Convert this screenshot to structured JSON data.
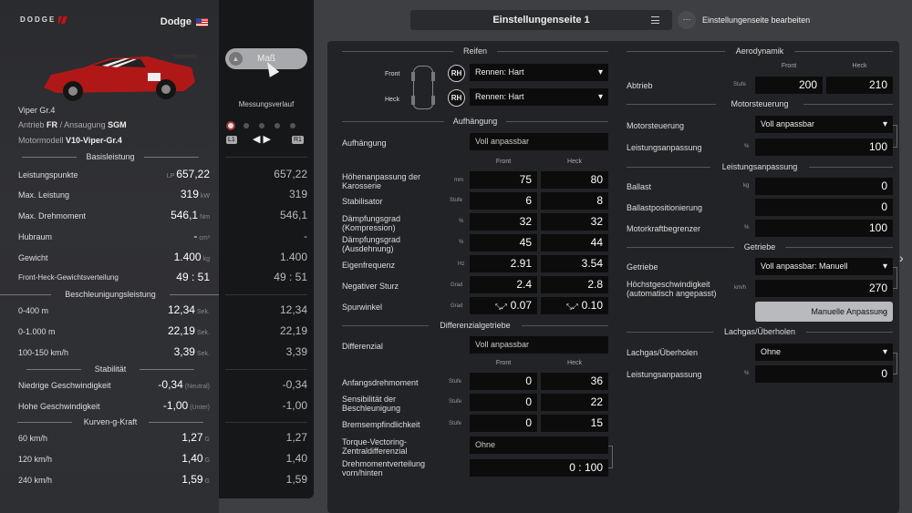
{
  "car_panel": {
    "brand": "DODGE",
    "manufacturer": "Dodge",
    "model": "Viper Gr.4",
    "drive_label": "Antrieb",
    "drive": "FR",
    "separator": "/",
    "intake_label": "Ansaugung",
    "intake": "SGM",
    "engine_label": "Motormodell",
    "engine": "V10-Viper-Gr.4",
    "sections": {
      "base": "Basisleistung",
      "accel": "Beschleunigungsleistung",
      "stability": "Stabilität",
      "gforce": "Kurven-g-Kraft"
    },
    "stats": [
      {
        "label": "Leistungspunkte",
        "prefix": "LP",
        "value": "657,22",
        "unit": "",
        "measured": "657,22"
      },
      {
        "label": "Max. Leistung",
        "prefix": "",
        "value": "319",
        "unit": "kW",
        "measured": "319"
      },
      {
        "label": "Max. Drehmoment",
        "prefix": "",
        "value": "546,1",
        "unit": "Nm",
        "measured": "546,1"
      },
      {
        "label": "Hubraum",
        "prefix": "",
        "value": "-",
        "unit": "cm³",
        "measured": "-"
      },
      {
        "label": "Gewicht",
        "prefix": "",
        "value": "1.400",
        "unit": "kg",
        "measured": "1.400"
      },
      {
        "label": "Front-Heck-Gewichtsverteilung",
        "prefix": "",
        "value": "49 : 51",
        "unit": "",
        "measured": "49 : 51"
      },
      {
        "label": "0-400 m",
        "prefix": "",
        "value": "12,34",
        "unit": "Sek.",
        "measured": "12,34"
      },
      {
        "label": "0-1.000 m",
        "prefix": "",
        "value": "22,19",
        "unit": "Sek.",
        "measured": "22,19"
      },
      {
        "label": "100-150 km/h",
        "prefix": "",
        "value": "3,39",
        "unit": "Sek.",
        "measured": "3,39"
      },
      {
        "label": "Niedrige Geschwindigkeit",
        "prefix": "",
        "value": "-0,34",
        "unit": "(Neutral)",
        "measured": "-0,34"
      },
      {
        "label": "Hohe Geschwindigkeit",
        "prefix": "",
        "value": "-1,00",
        "unit": "(Unter)",
        "measured": "-1,00"
      },
      {
        "label": "60 km/h",
        "prefix": "",
        "value": "1,27",
        "unit": "G",
        "measured": "1,27"
      },
      {
        "label": "120 km/h",
        "prefix": "",
        "value": "1,40",
        "unit": "G",
        "measured": "1,40"
      },
      {
        "label": "240 km/h",
        "prefix": "",
        "value": "1,59",
        "unit": "G",
        "measured": "1,59"
      }
    ]
  },
  "measure": {
    "button": "Maß",
    "history_label": "Messungsverlauf",
    "l1": "L1",
    "r1": "R1"
  },
  "header": {
    "page_title": "Einstellungenseite 1",
    "edit_label": "Einstellungenseite bearbeiten"
  },
  "settings": {
    "tyres": {
      "title": "Reifen",
      "front_label": "Front",
      "rear_label": "Heck",
      "badge": "RH",
      "front_value": "Rennen: Hart",
      "rear_value": "Rennen: Hart"
    },
    "suspension": {
      "title": "Aufhängung",
      "type_label": "Aufhängung",
      "type_value": "Voll anpassbar",
      "col_front": "Front",
      "col_rear": "Heck",
      "rows": [
        {
          "label": "Höhenanpassung der Karosserie",
          "unit": "mm",
          "front": "75",
          "rear": "80"
        },
        {
          "label": "Stabilisator",
          "unit": "Stufe",
          "front": "6",
          "rear": "8"
        },
        {
          "label": "Dämpfungsgrad (Kompression)",
          "unit": "%",
          "front": "32",
          "rear": "32"
        },
        {
          "label": "Dämpfungsgrad (Ausdehnung)",
          "unit": "%",
          "front": "45",
          "rear": "44"
        },
        {
          "label": "Eigenfrequenz",
          "unit": "Hz",
          "front": "2.91",
          "rear": "3.54"
        },
        {
          "label": "Negativer Sturz",
          "unit": "Grad",
          "front": "2.4",
          "rear": "2.8"
        },
        {
          "label": "Spurwinkel",
          "unit": "Grad",
          "front": "0.07",
          "rear": "0.10"
        }
      ]
    },
    "differential": {
      "title": "Differenzialgetriebe",
      "type_label": "Differenzial",
      "type_value": "Voll anpassbar",
      "col_front": "Front",
      "col_rear": "Heck",
      "rows": [
        {
          "label": "Anfangsdrehmoment",
          "unit": "Stufe",
          "front": "0",
          "rear": "36"
        },
        {
          "label": "Sensibilität der Beschleunigung",
          "unit": "Stufe",
          "front": "0",
          "rear": "22"
        },
        {
          "label": "Bremsempfindlichkeit",
          "unit": "Stufe",
          "front": "0",
          "rear": "15"
        }
      ],
      "center_label": "Torque-Vectoring-Zentraldifferenzial",
      "center_value": "Ohne",
      "split_label": "Drehmomentverteilung vorn/hinten",
      "split_value": "0 : 100"
    },
    "aero": {
      "title": "Aerodynamik",
      "col_front": "Front",
      "col_rear": "Heck",
      "label": "Abtrieb",
      "unit": "Stufe",
      "front": "200",
      "rear": "210"
    },
    "ecu": {
      "title": "Motorsteuerung",
      "label": "Motorsteuerung",
      "value": "Voll anpassbar",
      "output_label": "Leistungsanpassung",
      "output_unit": "%",
      "output_value": "100"
    },
    "performance": {
      "title": "Leistungsanpassung",
      "ballast_label": "Ballast",
      "ballast_unit": "kg",
      "ballast_value": "0",
      "position_label": "Ballastpositionierung",
      "position_value": "0",
      "restrictor_label": "Motorkraftbegrenzer",
      "restrictor_unit": "%",
      "restrictor_value": "100"
    },
    "transmission": {
      "title": "Getriebe",
      "label": "Getriebe",
      "value": "Voll anpassbar: Manuell",
      "top_speed_label": "Höchstgeschwindigkeit (automatisch angepasst)",
      "top_speed_unit": "km/h",
      "top_speed_value": "270",
      "manual_button": "Manuelle Anpassung",
      "more": "···"
    },
    "nitrous": {
      "title": "Lachgas/Überholen",
      "label": "Lachgas/Überholen",
      "value": "Ohne",
      "output_label": "Leistungsanpassung",
      "output_unit": "%",
      "output_value": "0"
    }
  },
  "colors": {
    "accent_red": "#c11111",
    "panel_bg": "#222326",
    "field_bg": "#0c0c0d"
  }
}
